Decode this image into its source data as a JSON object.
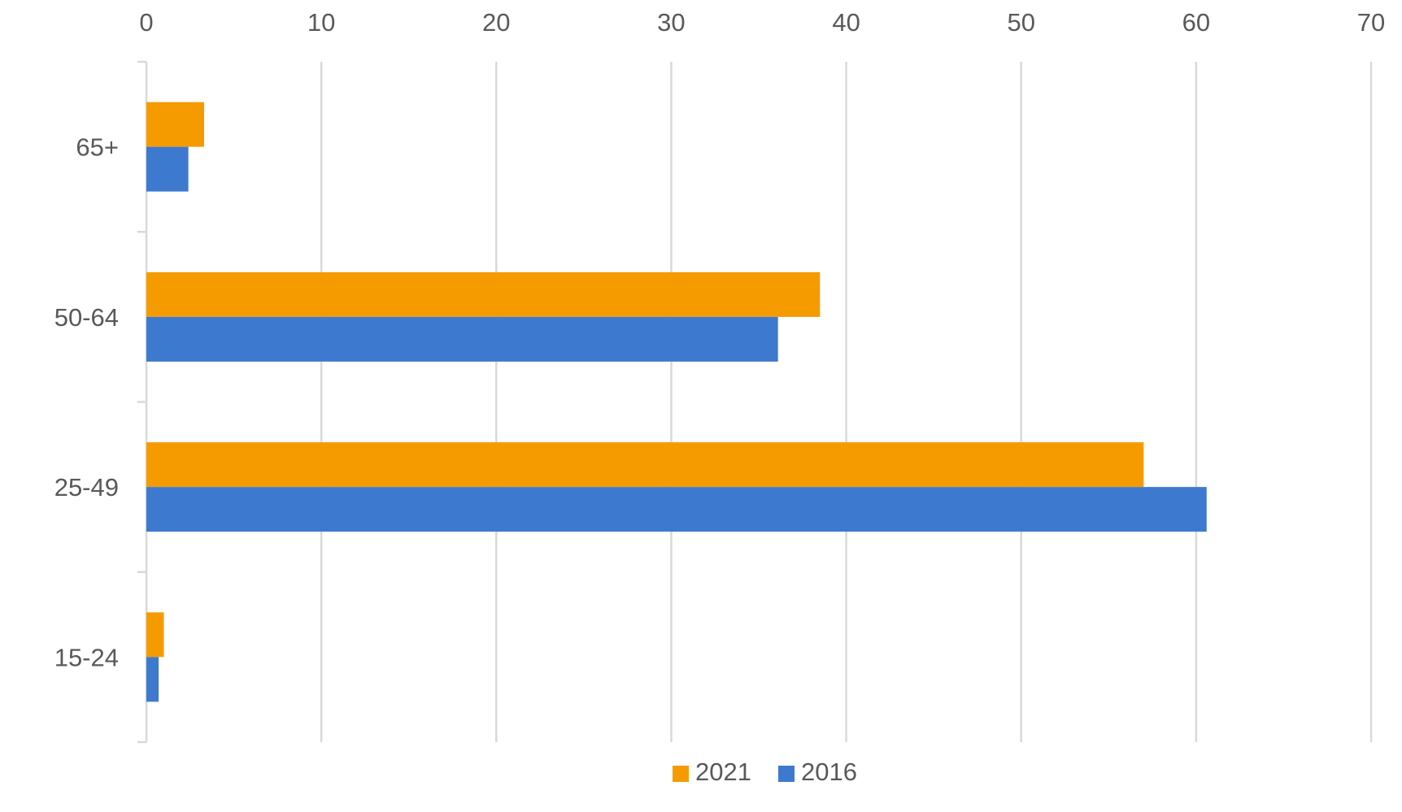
{
  "chart_data": {
    "type": "bar",
    "orientation": "horizontal",
    "title": "",
    "xlabel": "",
    "ylabel": "",
    "categories": [
      "65+",
      "50-64",
      "25-49",
      "15-24"
    ],
    "series": [
      {
        "name": "2021",
        "color": "#F59B00",
        "values": [
          3.3,
          38.5,
          57.0,
          1.0
        ]
      },
      {
        "name": "2016",
        "color": "#3D7ACF",
        "values": [
          2.4,
          36.1,
          60.6,
          0.7
        ]
      }
    ],
    "xlim": [
      0,
      70
    ],
    "x_ticks": [
      "0",
      "10",
      "20",
      "30",
      "40",
      "50",
      "60",
      "70"
    ],
    "x_axis_position": "top",
    "grid": true,
    "grid_color": "#D9D9D9",
    "legend": {
      "position": "bottom",
      "items": [
        "2021",
        "2016"
      ]
    }
  }
}
